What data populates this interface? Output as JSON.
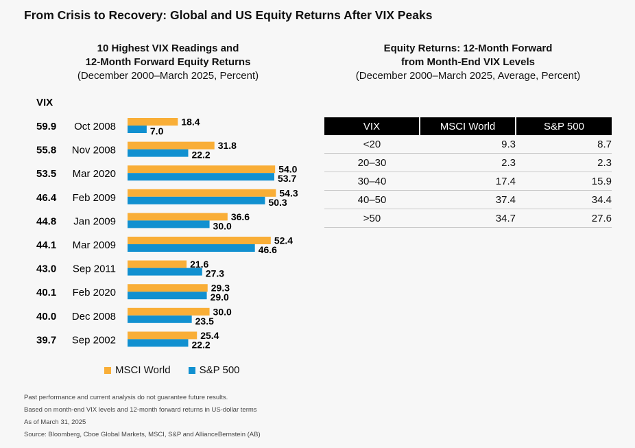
{
  "title": "From Crisis to Recovery: Global and US Equity Returns After VIX Peaks",
  "chart_data": [
    {
      "type": "bar",
      "orientation": "horizontal",
      "title": "10 Highest VIX Readings and",
      "title_line2": "12-Month Forward Equity Returns",
      "subtitle": "(December 2000–March 2025, Percent)",
      "vix_header": "VIX",
      "rows": [
        {
          "vix": "59.9",
          "date": "Oct 2008",
          "msci": 18.4,
          "sp": 7.0
        },
        {
          "vix": "55.8",
          "date": "Nov 2008",
          "msci": 31.8,
          "sp": 22.2
        },
        {
          "vix": "53.5",
          "date": "Mar 2020",
          "msci": 54.0,
          "sp": 53.7
        },
        {
          "vix": "46.4",
          "date": "Feb 2009",
          "msci": 54.3,
          "sp": 50.3
        },
        {
          "vix": "44.8",
          "date": "Jan 2009",
          "msci": 36.6,
          "sp": 30.0
        },
        {
          "vix": "44.1",
          "date": "Mar 2009",
          "msci": 52.4,
          "sp": 46.6
        },
        {
          "vix": "43.0",
          "date": "Sep 2011",
          "msci": 21.6,
          "sp": 27.3
        },
        {
          "vix": "40.1",
          "date": "Feb 2020",
          "msci": 29.3,
          "sp": 29.0
        },
        {
          "vix": "40.0",
          "date": "Dec 2008",
          "msci": 30.0,
          "sp": 23.5
        },
        {
          "vix": "39.7",
          "date": "Sep 2002",
          "msci": 25.4,
          "sp": 22.2
        }
      ],
      "series": [
        {
          "name": "MSCI World",
          "color": "#f9ae37"
        },
        {
          "name": "S&P 500",
          "color": "#1190d0"
        }
      ],
      "legend_position": "bottom"
    },
    {
      "type": "table",
      "title": "Equity Returns: 12-Month Forward",
      "title_line2": "from Month-End VIX Levels",
      "subtitle": "(December 2000–March 2025, Average, Percent)",
      "columns": [
        "VIX",
        "MSCI World",
        "S&P 500"
      ],
      "rows": [
        [
          "<20",
          "9.3",
          "8.7"
        ],
        [
          "20–30",
          "2.3",
          "2.3"
        ],
        [
          "30–40",
          "17.4",
          "15.9"
        ],
        [
          "40–50",
          "37.4",
          "34.4"
        ],
        [
          ">50",
          "34.7",
          "27.6"
        ]
      ]
    }
  ],
  "notes": [
    "Past performance and current analysis do not guarantee future results.",
    "Based on month-end VIX levels and 12-month forward returns in US-dollar terms",
    "As of March 31, 2025",
    "Source: Bloomberg, Cboe Global Markets, MSCI, S&P and AllianceBernstein (AB)"
  ]
}
